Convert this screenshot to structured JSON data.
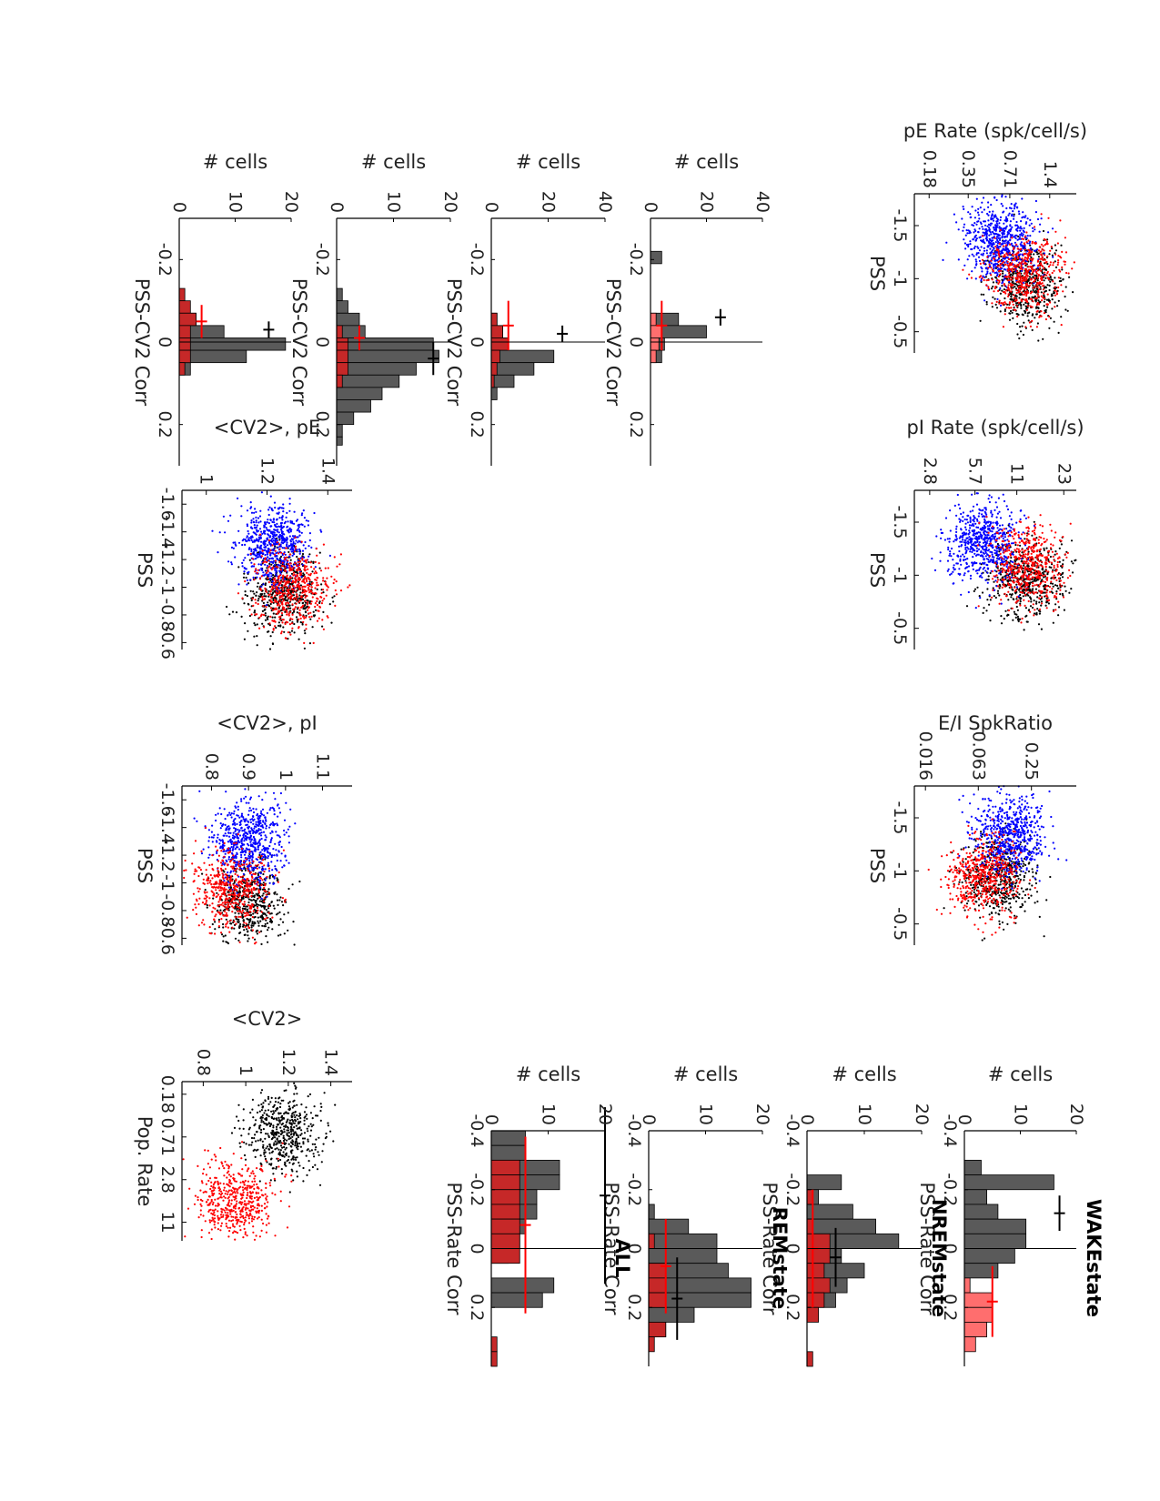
{
  "figure": {
    "colors": {
      "wake": "#000000",
      "nrem": "#0000ff",
      "rem": "#ff0000",
      "hist_gray": "#5a5a5a",
      "hist_red_dark": "#c62828",
      "hist_red_light": "#ff6e6e"
    },
    "state_titles": [
      "WAKEstate",
      "NREMstate",
      "REMstate",
      "ALL"
    ]
  },
  "chart_data": [
    {
      "id": "pe_rate_vs_pss",
      "type": "scatter",
      "ylabel": "pE Rate (spk/cell/s)",
      "xlabel": "PSS",
      "yscale": "log",
      "yticks": [
        "1.4",
        "0.71",
        "0.35",
        "0.18"
      ],
      "xticks": [
        "-1.5",
        "-1",
        "-0.5"
      ],
      "xlim": [
        -1.8,
        -0.3
      ],
      "ylim": [
        0.14,
        2.2
      ],
      "clusters": [
        {
          "state": "WAKE",
          "x_center": -0.95,
          "y_center": 0.95
        },
        {
          "state": "NREM",
          "x_center": -1.35,
          "y_center": 0.6
        },
        {
          "state": "REM",
          "x_center": -1.05,
          "y_center": 0.9
        }
      ]
    },
    {
      "id": "pi_rate_vs_pss",
      "type": "scatter",
      "ylabel": "pI Rate (spk/cell/s)",
      "xlabel": "PSS",
      "yscale": "log",
      "yticks": [
        "23",
        "11",
        "5.7",
        "2.8"
      ],
      "xticks": [
        "-1.5",
        "-1",
        "-0.5"
      ],
      "xlim": [
        -1.8,
        -0.3
      ],
      "ylim": [
        2.2,
        28
      ],
      "clusters": [
        {
          "state": "WAKE",
          "x_center": -0.95,
          "y_center": 13
        },
        {
          "state": "NREM",
          "x_center": -1.3,
          "y_center": 6.5
        },
        {
          "state": "REM",
          "x_center": -1.1,
          "y_center": 13
        }
      ]
    },
    {
      "id": "ei_ratio_vs_pss",
      "type": "scatter",
      "ylabel": "E/I SpkRatio",
      "xlabel": "PSS",
      "yscale": "log",
      "yticks": [
        "0.25",
        "0.063",
        "0.016"
      ],
      "xticks": [
        "-1.5",
        "-1",
        "-0.5"
      ],
      "xlim": [
        -1.8,
        -0.3
      ],
      "ylim": [
        0.012,
        0.8
      ],
      "clusters": [
        {
          "state": "WAKE",
          "x_center": -0.95,
          "y_center": 0.11
        },
        {
          "state": "NREM",
          "x_center": -1.35,
          "y_center": 0.15
        },
        {
          "state": "REM",
          "x_center": -0.95,
          "y_center": 0.07
        }
      ]
    },
    {
      "id": "cv2_pe_vs_pss",
      "type": "scatter",
      "ylabel": "<CV2>, pE",
      "xlabel": "PSS",
      "yticks": [
        "1.4",
        "1.2",
        "1"
      ],
      "xticks": [
        "-1.6",
        "-1.4",
        "-1.2",
        "-1",
        "-0.8",
        "-0.6"
      ],
      "xlim": [
        -1.7,
        -0.55
      ],
      "ylim": [
        0.92,
        1.48
      ],
      "clusters": [
        {
          "state": "WAKE",
          "x_center": -0.95,
          "y_center": 1.25
        },
        {
          "state": "NREM",
          "x_center": -1.3,
          "y_center": 1.22
        },
        {
          "state": "REM",
          "x_center": -1.0,
          "y_center": 1.28
        }
      ]
    },
    {
      "id": "cv2_pi_vs_pss",
      "type": "scatter",
      "ylabel": "<CV2>, pI",
      "xlabel": "PSS",
      "yticks": [
        "1.1",
        "1",
        "0.9",
        "0.8"
      ],
      "xticks": [
        "-1.6",
        "-1.4",
        "-1.2",
        "-1",
        "-0.8",
        "-0.6"
      ],
      "xlim": [
        -1.7,
        -0.55
      ],
      "ylim": [
        0.72,
        1.18
      ],
      "clusters": [
        {
          "state": "WAKE",
          "x_center": -0.85,
          "y_center": 0.9
        },
        {
          "state": "NREM",
          "x_center": -1.3,
          "y_center": 0.9
        },
        {
          "state": "REM",
          "x_center": -0.95,
          "y_center": 0.85
        }
      ]
    },
    {
      "id": "cv2_vs_pop_rate",
      "type": "scatter",
      "ylabel": "<CV2>",
      "xlabel": "Pop. Rate",
      "xscale": "log",
      "xticks": [
        "0.18",
        "0.71",
        "2.8",
        "11"
      ],
      "yticks": [
        "1.4",
        "1.2",
        "1",
        "0.8"
      ],
      "xlim": [
        0.12,
        20
      ],
      "ylim": [
        0.7,
        1.5
      ],
      "clusters": [
        {
          "color": "black",
          "x_center": 0.6,
          "y_center": 1.18
        },
        {
          "color": "red",
          "x_center": 5.5,
          "y_center": 0.95
        }
      ]
    },
    {
      "id": "pss_rate_corr_hist",
      "type": "bar",
      "xlabel": "PSS-Rate Corr",
      "ylabel": "# cells",
      "xlim": [
        -0.4,
        0.4
      ],
      "ylim": [
        0,
        20
      ],
      "yticks": [
        "20",
        "10",
        "0"
      ],
      "xticks": [
        "-0.4",
        "-0.2",
        "0",
        "0.2"
      ],
      "bin_edges": [
        -0.4,
        -0.35,
        -0.3,
        -0.25,
        -0.2,
        -0.15,
        -0.1,
        -0.05,
        0,
        0.05,
        0.1,
        0.15,
        0.2,
        0.25,
        0.3,
        0.35,
        0.4
      ],
      "panels": [
        {
          "title": "WAKEstate",
          "gray": [
            0,
            0,
            3,
            16,
            4,
            6,
            11,
            11,
            9,
            6,
            1,
            0,
            0,
            0,
            0,
            0
          ],
          "red": [
            0,
            0,
            0,
            0,
            0,
            0,
            0,
            0,
            0,
            0,
            1,
            5,
            5,
            4,
            2,
            0
          ],
          "gray_err": {
            "mean": -0.12,
            "sd": 0.06,
            "y": 17
          },
          "red_err": {
            "mean": 0.18,
            "sd": 0.12,
            "y": 5
          }
        },
        {
          "title": "NREMstate",
          "gray": [
            0,
            0,
            0,
            6,
            2,
            8,
            12,
            16,
            6,
            10,
            7,
            5,
            0,
            0,
            0,
            0
          ],
          "red": [
            0,
            0,
            0,
            0,
            1,
            0,
            1,
            4,
            4,
            3,
            4,
            3,
            2,
            0,
            0,
            1
          ],
          "gray_err": {
            "mean": 0.03,
            "sd": 0.1,
            "y": 5
          },
          "red_err": {
            "mean": 0.0,
            "sd": 0.2,
            "y": 1
          }
        },
        {
          "title": "REMstate",
          "gray": [
            0,
            0,
            0,
            0,
            0,
            1,
            7,
            12,
            12,
            14,
            18,
            18,
            8,
            3,
            0,
            0
          ],
          "red": [
            0,
            0,
            0,
            0,
            0,
            0,
            0,
            1,
            0,
            3,
            3,
            3,
            0,
            3,
            1,
            0
          ],
          "gray_err": {
            "mean": 0.17,
            "sd": 0.14,
            "y": 5
          },
          "red_err": {
            "mean": 0.06,
            "sd": 0.16,
            "y": 3
          }
        },
        {
          "title": "ALL",
          "gray": [
            6,
            6,
            12,
            12,
            8,
            8,
            6,
            5,
            3,
            0,
            11,
            9,
            0,
            0,
            0,
            0
          ],
          "red": [
            0,
            0,
            5,
            5,
            5,
            5,
            5,
            5,
            5,
            0,
            0,
            0,
            0,
            0,
            1,
            1
          ],
          "gray_err": {
            "mean": -0.18,
            "sd": 0.3,
            "y": 20
          },
          "red_err": {
            "mean": -0.08,
            "sd": 0.3,
            "y": 6
          }
        }
      ]
    },
    {
      "id": "pss_cv2_corr_hist",
      "type": "bar",
      "xlabel": "PSS-CV2 Corr",
      "ylabel": "# cells",
      "xlim": [
        -0.3,
        0.3
      ],
      "xticks": [
        "-0.2",
        "0",
        "0.2"
      ],
      "bin_edges": [
        -0.25,
        -0.22,
        -0.19,
        -0.16,
        -0.13,
        -0.1,
        -0.07,
        -0.04,
        -0.01,
        0.02,
        0.05,
        0.08,
        0.11,
        0.14,
        0.17,
        0.2,
        0.23,
        0.25
      ],
      "panels": [
        {
          "ylim": [
            0,
            40
          ],
          "yticks": [
            "40",
            "20",
            "0"
          ],
          "gray": [
            0,
            4,
            0,
            0,
            0,
            0,
            10,
            20,
            5,
            4,
            0,
            0,
            0,
            0,
            0,
            0,
            0
          ],
          "red": [
            0,
            0,
            0,
            0,
            0,
            0,
            2,
            4,
            3,
            2,
            0,
            0,
            0,
            0,
            0,
            0,
            0
          ],
          "gray_err": {
            "mean": -0.06,
            "sd": 0.02,
            "y": 25
          },
          "red_err": {
            "mean": -0.04,
            "sd": 0.06,
            "y": 4
          }
        },
        {
          "ylim": [
            0,
            40
          ],
          "yticks": [
            "40",
            "20",
            "0"
          ],
          "gray": [
            0,
            0,
            0,
            0,
            0,
            0,
            2,
            4,
            5,
            22,
            15,
            8,
            2,
            0,
            0,
            0,
            0
          ],
          "red": [
            0,
            0,
            0,
            0,
            0,
            0,
            2,
            4,
            6,
            3,
            2,
            1,
            0,
            0,
            0,
            0,
            0
          ],
          "gray_err": {
            "mean": -0.02,
            "sd": 0.02,
            "y": 25
          },
          "red_err": {
            "mean": -0.04,
            "sd": 0.06,
            "y": 6
          }
        },
        {
          "ylim": [
            0,
            20
          ],
          "yticks": [
            "20",
            "10",
            "0"
          ],
          "gray": [
            0,
            0,
            0,
            0,
            1,
            2,
            4,
            5,
            17,
            18,
            14,
            11,
            8,
            6,
            3,
            1,
            1
          ],
          "red": [
            0,
            0,
            0,
            0,
            0,
            0,
            0,
            1,
            2,
            2,
            2,
            1,
            0,
            0,
            0,
            0,
            0
          ],
          "gray_err": {
            "mean": 0.04,
            "sd": 0.04,
            "y": 17
          },
          "red_err": {
            "mean": -0.01,
            "sd": 0.03,
            "y": 4
          }
        },
        {
          "ylim": [
            0,
            20
          ],
          "yticks": [
            "20",
            "10",
            "0"
          ],
          "gray": [
            0,
            0,
            0,
            0,
            0,
            0,
            3,
            8,
            19,
            12,
            2,
            0,
            0,
            0,
            0,
            0,
            0
          ],
          "red": [
            0,
            0,
            0,
            0,
            1,
            2,
            3,
            2,
            2,
            2,
            1,
            0,
            0,
            0,
            0,
            0,
            0
          ],
          "gray_err": {
            "mean": -0.03,
            "sd": 0.02,
            "y": 16
          },
          "red_err": {
            "mean": -0.05,
            "sd": 0.04,
            "y": 4
          }
        }
      ]
    }
  ]
}
